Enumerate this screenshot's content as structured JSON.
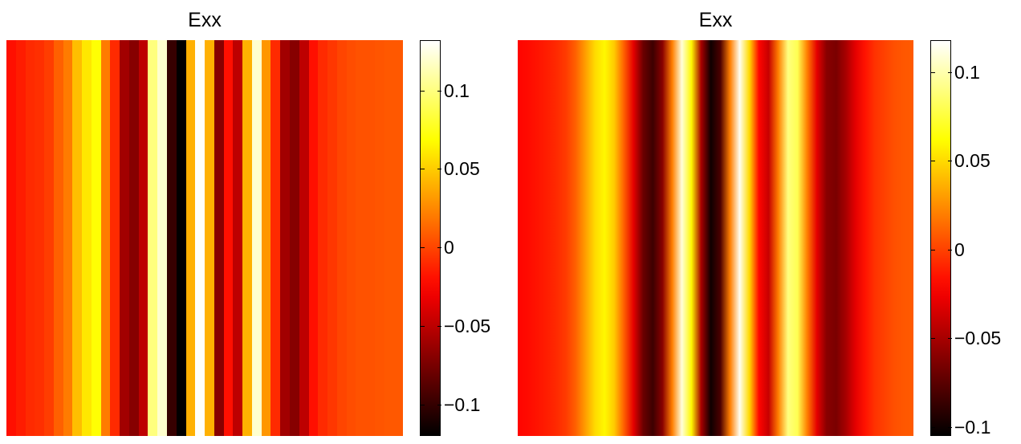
{
  "chart_data": [
    {
      "type": "heatmap",
      "title": "Exx",
      "colormap": "hot",
      "orientation": "columns",
      "shading": "flat",
      "clim": [
        -0.12,
        0.132
      ],
      "colorbar_ticks": [
        {
          "value": -0.1,
          "label": "−0.1"
        },
        {
          "value": -0.05,
          "label": "−0.05"
        },
        {
          "value": 0,
          "label": "0"
        },
        {
          "value": 0.05,
          "label": "0.05"
        },
        {
          "value": 0.1,
          "label": "0.1"
        }
      ],
      "column_values": [
        -0.02,
        -0.015,
        -0.01,
        -0.008,
        -0.003,
        0.01,
        0.02,
        0.045,
        0.06,
        0.07,
        0.02,
        -0.01,
        -0.06,
        -0.07,
        -0.05,
        0.1,
        0.12,
        -0.1,
        -0.12,
        0.04,
        0.13,
        0.04,
        -0.07,
        -0.02,
        -0.05,
        0.04,
        0.12,
        0.03,
        -0.01,
        -0.06,
        -0.07,
        -0.05,
        -0.02,
        -0.01,
        -0.005,
        0.0,
        0.003,
        0.005,
        0.005,
        0.006,
        0.007,
        0.007
      ]
    },
    {
      "type": "heatmap",
      "title": "Exx",
      "colormap": "hot",
      "orientation": "columns",
      "shading": "interp",
      "clim": [
        -0.105,
        0.118
      ],
      "colorbar_ticks": [
        {
          "value": -0.1,
          "label": "−0.1"
        },
        {
          "value": -0.05,
          "label": "−0.05"
        },
        {
          "value": 0,
          "label": "0"
        },
        {
          "value": 0.05,
          "label": "0.05"
        },
        {
          "value": 0.1,
          "label": "0.1"
        }
      ],
      "column_values": [
        -0.02,
        -0.018,
        -0.015,
        -0.012,
        -0.008,
        -0.002,
        0.01,
        0.03,
        0.05,
        0.06,
        0.045,
        0.01,
        -0.03,
        -0.07,
        -0.085,
        -0.06,
        0.02,
        0.11,
        0.06,
        -0.05,
        -0.1,
        -0.08,
        0.02,
        0.115,
        0.05,
        -0.02,
        -0.04,
        0.02,
        0.09,
        0.08,
        0.02,
        -0.03,
        -0.06,
        -0.065,
        -0.05,
        -0.03,
        -0.015,
        -0.005,
        0.0,
        0.005,
        0.007,
        0.008
      ]
    }
  ]
}
